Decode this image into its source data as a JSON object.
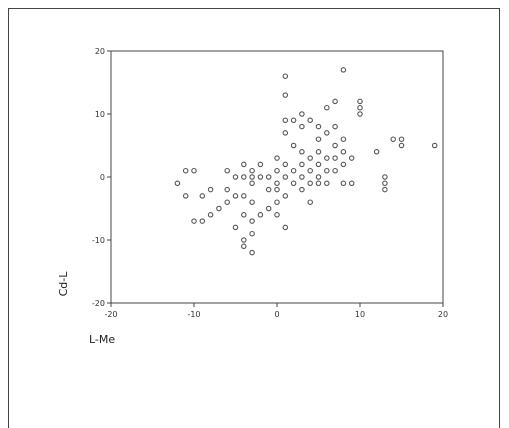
{
  "chart_data": {
    "type": "scatter",
    "xlabel": "L-Me",
    "ylabel": "Cd-L",
    "xlim": [
      -20,
      20
    ],
    "ylim": [
      -20,
      20
    ],
    "x_ticks": [
      "-20",
      "-10",
      "0",
      "10",
      "20"
    ],
    "y_ticks": [
      "20",
      "10",
      "0",
      "-10",
      "-20"
    ],
    "grid": false,
    "legend": "none",
    "colors": {
      "axis": "#444444",
      "point": "#555555",
      "background": "#ffffff"
    },
    "points": [
      [
        -11,
        1
      ],
      [
        -11,
        -3
      ],
      [
        -10,
        1
      ],
      [
        -10,
        -7
      ],
      [
        -9,
        -7
      ],
      [
        -9,
        -3
      ],
      [
        -8,
        -6
      ],
      [
        -8,
        -2
      ],
      [
        -7,
        -5
      ],
      [
        -6,
        -4
      ],
      [
        -6,
        1
      ],
      [
        -6,
        -2
      ],
      [
        -5,
        -3
      ],
      [
        -5,
        0
      ],
      [
        -5,
        -8
      ],
      [
        -4,
        -11
      ],
      [
        -4,
        -10
      ],
      [
        -4,
        -6
      ],
      [
        -4,
        -3
      ],
      [
        -4,
        2
      ],
      [
        -4,
        0
      ],
      [
        -3,
        -12
      ],
      [
        -3,
        -9
      ],
      [
        -3,
        -7
      ],
      [
        -3,
        -4
      ],
      [
        -3,
        -1
      ],
      [
        -3,
        1
      ],
      [
        -2,
        -6
      ],
      [
        -2,
        0
      ],
      [
        -2,
        2
      ],
      [
        -1,
        -5
      ],
      [
        -1,
        0
      ],
      [
        -1,
        -2
      ],
      [
        0,
        3
      ],
      [
        0,
        1
      ],
      [
        0,
        -4
      ],
      [
        0,
        -1
      ],
      [
        0,
        -2
      ],
      [
        1,
        2
      ],
      [
        1,
        0
      ],
      [
        1,
        -3
      ],
      [
        1,
        16
      ],
      [
        1,
        13
      ],
      [
        1,
        9
      ],
      [
        1,
        7
      ],
      [
        1,
        -8
      ],
      [
        2,
        9
      ],
      [
        2,
        5
      ],
      [
        2,
        1
      ],
      [
        2,
        -1
      ],
      [
        3,
        10
      ],
      [
        3,
        8
      ],
      [
        3,
        4
      ],
      [
        3,
        2
      ],
      [
        3,
        0
      ],
      [
        3,
        -2
      ],
      [
        4,
        9
      ],
      [
        4,
        3
      ],
      [
        4,
        1
      ],
      [
        4,
        -1
      ],
      [
        4,
        -4
      ],
      [
        5,
        8
      ],
      [
        5,
        6
      ],
      [
        5,
        4
      ],
      [
        5,
        2
      ],
      [
        5,
        0
      ],
      [
        5,
        -1
      ],
      [
        6,
        11
      ],
      [
        6,
        7
      ],
      [
        6,
        3
      ],
      [
        6,
        1
      ],
      [
        6,
        -1
      ],
      [
        7,
        12
      ],
      [
        7,
        8
      ],
      [
        7,
        5
      ],
      [
        7,
        3
      ],
      [
        7,
        1
      ],
      [
        8,
        17
      ],
      [
        8,
        6
      ],
      [
        8,
        4
      ],
      [
        8,
        2
      ],
      [
        8,
        -1
      ],
      [
        9,
        3
      ],
      [
        9,
        -1
      ],
      [
        10,
        12
      ],
      [
        10,
        11
      ],
      [
        10,
        10
      ],
      [
        12,
        4
      ],
      [
        13,
        0
      ],
      [
        13,
        -1
      ],
      [
        13,
        -2
      ],
      [
        14,
        6
      ],
      [
        15,
        6
      ],
      [
        15,
        5
      ],
      [
        19,
        5
      ],
      [
        -12,
        -1
      ],
      [
        -3,
        0
      ],
      [
        0,
        -6
      ]
    ]
  }
}
